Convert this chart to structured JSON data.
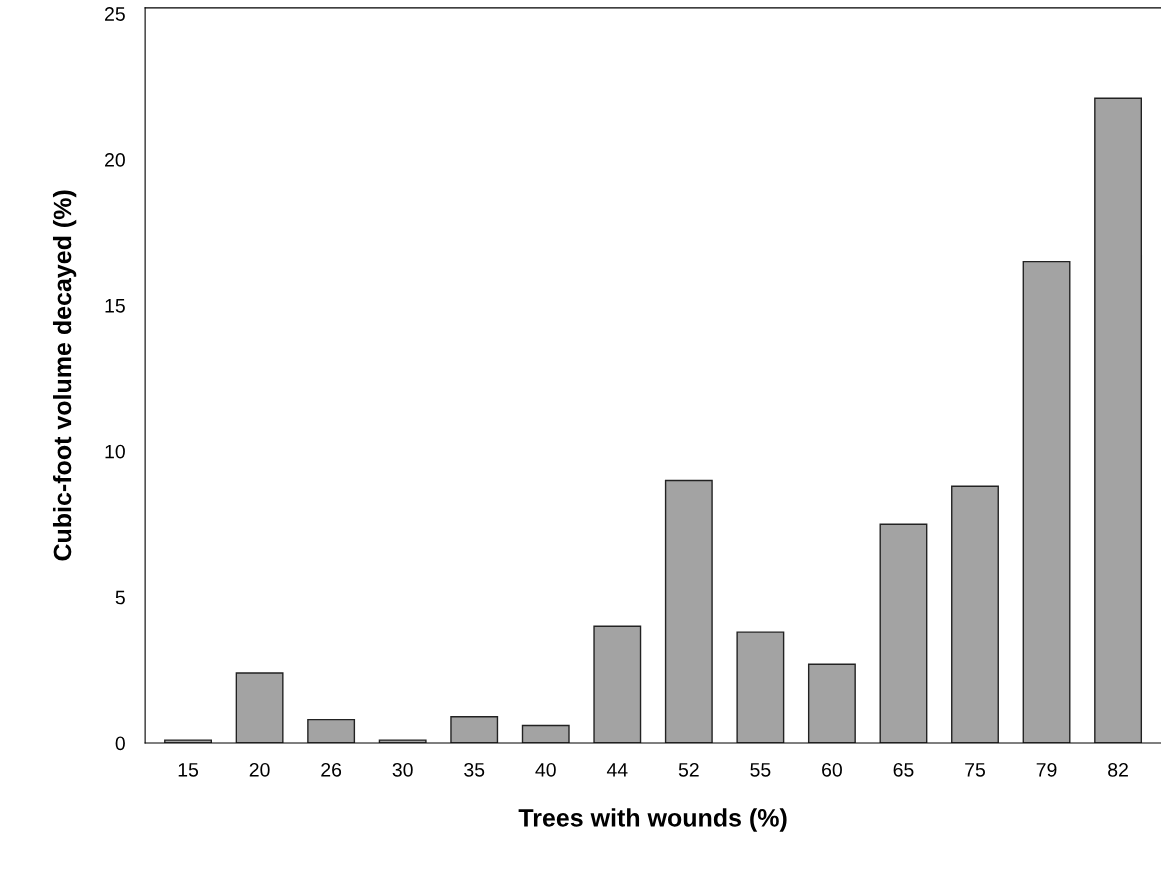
{
  "chart_data": {
    "type": "bar",
    "xlabel": "Trees with wounds (%)",
    "ylabel": "Cubic-foot volume decayed (%)",
    "categories": [
      "15",
      "20",
      "26",
      "30",
      "35",
      "40",
      "44",
      "52",
      "55",
      "60",
      "65",
      "75",
      "79",
      "82"
    ],
    "values": [
      0.1,
      2.4,
      0.8,
      0.1,
      0.9,
      0.6,
      4.0,
      9.0,
      3.8,
      2.7,
      7.5,
      8.8,
      16.5,
      22.1
    ],
    "color": "#a3a3a3",
    "ylim": [
      0,
      25.2
    ],
    "yticks": [
      0,
      5,
      10,
      15,
      20,
      25
    ],
    "grid": false,
    "legend": false
  }
}
